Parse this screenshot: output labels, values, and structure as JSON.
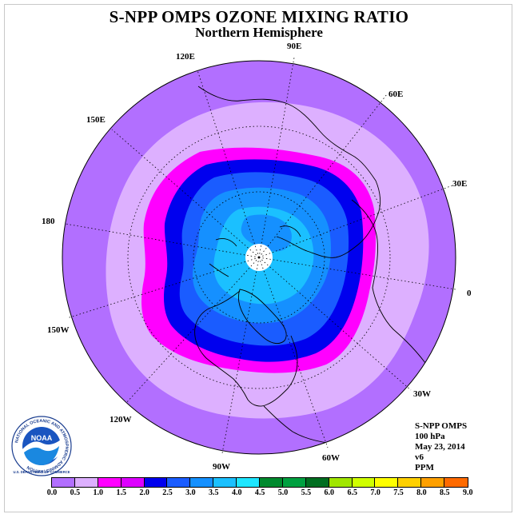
{
  "header": {
    "title": "S-NPP OMPS OZONE MIXING RATIO",
    "subtitle": "Northern Hemisphere"
  },
  "map": {
    "projection": "north-polar-stereographic",
    "longitude_labels": [
      "120E",
      "90E",
      "60E",
      "30E",
      "0",
      "30W",
      "60W",
      "90W",
      "120W",
      "150W",
      "180",
      "150E"
    ],
    "colors": {
      "ocean_far": "#b26fff",
      "ring_light": "#ddb0ff",
      "ring_magenta": "#ff00ff",
      "ring_dark_blue": "#0000ee",
      "ring_blue": "#1a5cff",
      "ring_mid_blue": "#1590ff",
      "ring_cyan": "#1bc0ff",
      "pole_missing": "#ffffff"
    }
  },
  "info": {
    "lines": [
      "S-NPP OMPS",
      "100 hPa",
      "May 23, 2014",
      "v6",
      "PPM"
    ]
  },
  "logo": {
    "text": "NOAA",
    "ring_text": "NATIONAL OCEANIC AND ATMOSPHERIC ADMINISTRATION",
    "ring_text_bottom": "U.S. DEPARTMENT OF COMMERCE"
  },
  "colorbar": {
    "colors": [
      "#b26fff",
      "#ddb0ff",
      "#ff00ff",
      "#dd00ff",
      "#0000ee",
      "#1a5cff",
      "#1590ff",
      "#1bc0ff",
      "#1ee6ff",
      "#008a2e",
      "#00a040",
      "#006e20",
      "#a0e600",
      "#d0ff00",
      "#ffff00",
      "#ffd000",
      "#ffa000",
      "#ff6a00",
      "#ff0000",
      "#8b5a2b"
    ],
    "ticks": [
      "0.0",
      "0.5",
      "1.0",
      "1.5",
      "2.0",
      "2.5",
      "3.0",
      "3.5",
      "4.0",
      "4.5",
      "5.0",
      "5.5",
      "6.0",
      "6.5",
      "7.0",
      "7.5",
      "8.0",
      "8.5",
      "9.0"
    ]
  }
}
